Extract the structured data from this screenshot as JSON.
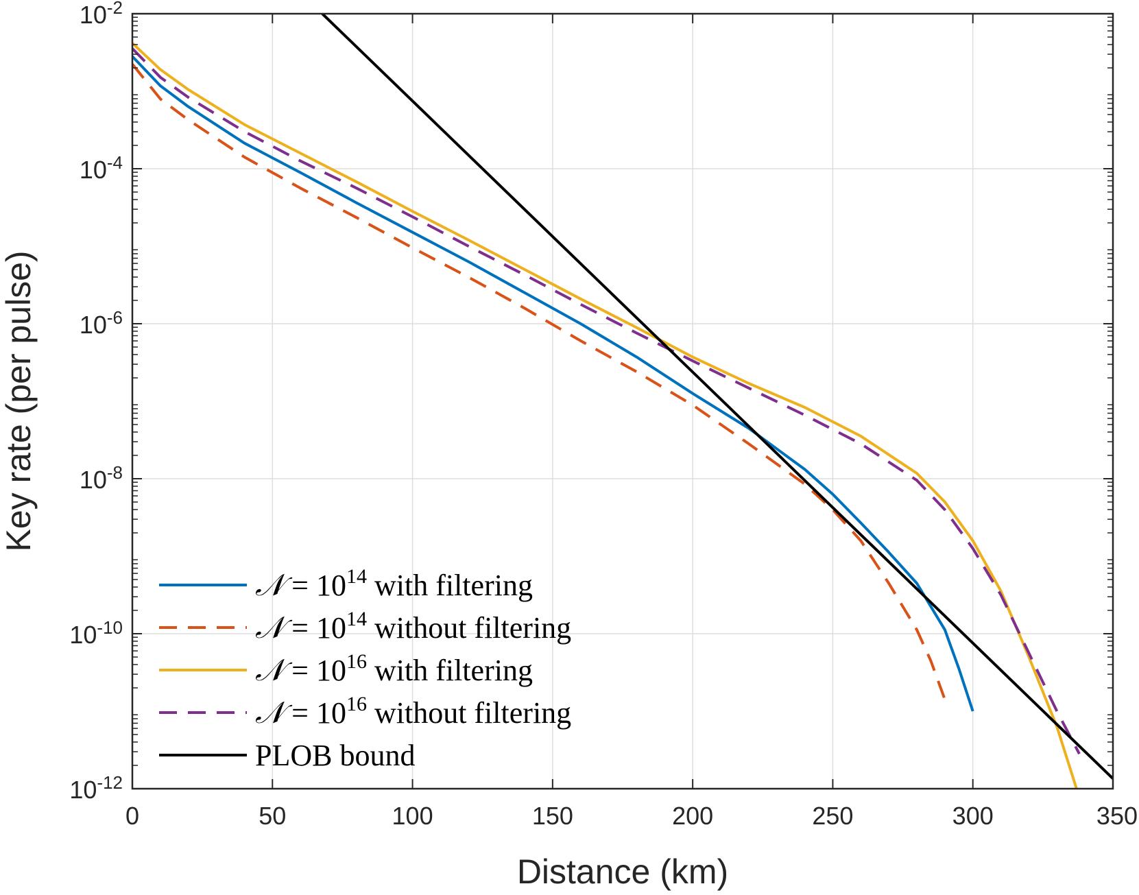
{
  "chart_data": {
    "type": "line",
    "title": "",
    "xlabel": "Distance (km)",
    "ylabel": "Key rate (per pulse)",
    "xlim": [
      0,
      350
    ],
    "ylim_log10": [
      -12,
      -2
    ],
    "yscale": "log",
    "grid": true,
    "legend_position": "bottom-left",
    "x_ticks": [
      0,
      50,
      100,
      150,
      200,
      250,
      300,
      350
    ],
    "y_ticks": [
      {
        "base": "10",
        "exp": "-2",
        "log10": -2
      },
      {
        "base": "10",
        "exp": "-4",
        "log10": -4
      },
      {
        "base": "10",
        "exp": "-6",
        "log10": -6
      },
      {
        "base": "10",
        "exp": "-8",
        "log10": -8
      },
      {
        "base": "10",
        "exp": "-10",
        "log10": -10
      },
      {
        "base": "10",
        "exp": "-12",
        "log10": -12
      }
    ],
    "series": [
      {
        "name": "N = 10^14 with filtering",
        "legend": {
          "symbol": "𝒩",
          "rel": "= 10",
          "exp": "14",
          "suffix": "with filtering"
        },
        "color": "#0072BD",
        "dash": "solid",
        "x": [
          0,
          10,
          20,
          40,
          60,
          80,
          100,
          120,
          140,
          160,
          180,
          200,
          220,
          240,
          250,
          260,
          270,
          280,
          290,
          295,
          300
        ],
        "log10_y": [
          -2.55,
          -2.93,
          -3.2,
          -3.67,
          -4.05,
          -4.44,
          -4.82,
          -5.2,
          -5.6,
          -6.0,
          -6.43,
          -6.9,
          -7.35,
          -7.88,
          -8.2,
          -8.57,
          -8.95,
          -9.35,
          -9.95,
          -10.45,
          -11.0
        ]
      },
      {
        "name": "N = 10^14 without filtering",
        "legend": {
          "symbol": "𝒩",
          "rel": "= 10",
          "exp": "14",
          "suffix": "without filtering"
        },
        "color": "#D95319",
        "dash": "dashed",
        "x": [
          0,
          10,
          20,
          40,
          60,
          80,
          100,
          120,
          140,
          160,
          180,
          200,
          220,
          240,
          250,
          260,
          270,
          280,
          285,
          290
        ],
        "log10_y": [
          -2.65,
          -3.1,
          -3.37,
          -3.85,
          -4.25,
          -4.63,
          -5.02,
          -5.4,
          -5.8,
          -6.22,
          -6.62,
          -7.05,
          -7.55,
          -8.07,
          -8.4,
          -8.8,
          -9.35,
          -9.95,
          -10.35,
          -10.85
        ]
      },
      {
        "name": "N = 10^16 with filtering",
        "legend": {
          "symbol": "𝒩",
          "rel": "= 10",
          "exp": "16",
          "suffix": "with filtering"
        },
        "color": "#EDB120",
        "dash": "solid",
        "x": [
          0,
          10,
          20,
          40,
          60,
          80,
          100,
          120,
          140,
          160,
          180,
          200,
          220,
          240,
          260,
          280,
          290,
          300,
          310,
          320,
          330,
          337
        ],
        "log10_y": [
          -2.38,
          -2.72,
          -2.98,
          -3.43,
          -3.8,
          -4.17,
          -4.55,
          -4.92,
          -5.3,
          -5.68,
          -6.05,
          -6.43,
          -6.77,
          -7.08,
          -7.45,
          -7.93,
          -8.3,
          -8.8,
          -9.45,
          -10.3,
          -11.2,
          -12.0
        ]
      },
      {
        "name": "N = 10^16 without filtering",
        "legend": {
          "symbol": "𝒩",
          "rel": "= 10",
          "exp": "16",
          "suffix": "without filtering"
        },
        "color": "#7E2F8E",
        "dash": "dashed",
        "x": [
          0,
          10,
          20,
          40,
          60,
          80,
          100,
          120,
          140,
          160,
          180,
          200,
          220,
          240,
          260,
          280,
          290,
          300,
          310,
          320,
          330,
          338
        ],
        "log10_y": [
          -2.45,
          -2.82,
          -3.08,
          -3.52,
          -3.9,
          -4.25,
          -4.62,
          -5.0,
          -5.37,
          -5.75,
          -6.12,
          -6.48,
          -6.83,
          -7.18,
          -7.55,
          -8.02,
          -8.4,
          -8.9,
          -9.5,
          -10.25,
          -11.0,
          -11.55
        ]
      },
      {
        "name": "PLOB bound",
        "legend": {
          "symbol": "",
          "rel": "",
          "exp": "",
          "suffix": "PLOB bound"
        },
        "color": "#000000",
        "dash": "solid",
        "x": [
          67.8,
          350
        ],
        "log10_y": [
          -2.0,
          -11.87
        ]
      }
    ]
  }
}
